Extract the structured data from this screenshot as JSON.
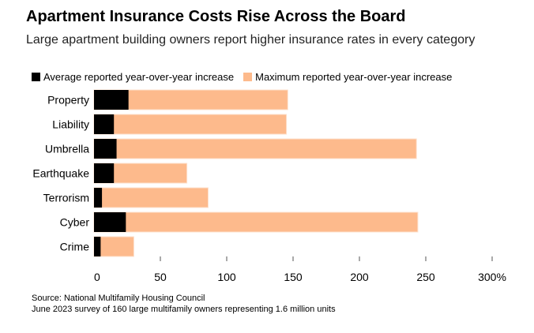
{
  "chart_data": {
    "type": "bar",
    "orientation": "horizontal",
    "title": "Apartment Insurance Costs Rise Across the Board",
    "subtitle": "Large apartment building owners report higher insurance rates in every category",
    "categories": [
      "Property",
      "Liability",
      "Umbrella",
      "Earthquake",
      "Terrorism",
      "Cyber",
      "Crime"
    ],
    "series": [
      {
        "name": "Average reported year-over-year increase",
        "color": "#000000",
        "values": [
          26,
          15,
          17,
          15,
          6,
          24,
          5
        ]
      },
      {
        "name": "Maximum reported year-over-year increase",
        "color": "#fdba8c",
        "values": [
          146,
          145,
          243,
          70,
          86,
          244,
          30
        ]
      }
    ],
    "xlim": [
      0,
      300
    ],
    "xticks": [
      0,
      50,
      100,
      150,
      200,
      250,
      300
    ],
    "xtick_labels": [
      "0",
      "50",
      "100",
      "150",
      "200",
      "250",
      "300%"
    ],
    "legend_position": "top",
    "grid": false,
    "source": "Source: National Multifamily Housing Council",
    "note": "June 2023 survey of 160 large multifamily owners representing 1.6 million units"
  }
}
